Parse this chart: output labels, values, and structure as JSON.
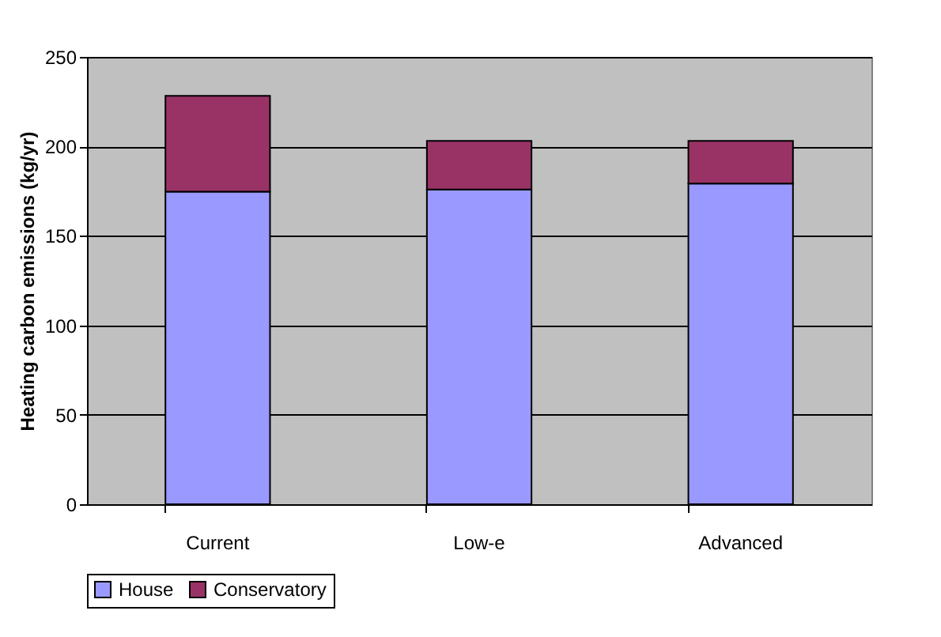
{
  "chart_data": {
    "type": "bar",
    "stacked": true,
    "ylabel": "Heating carbon emissions (kg/yr)",
    "categories": [
      "Current",
      "Low-e",
      "Advanced"
    ],
    "series": [
      {
        "name": "House",
        "color": "#9999ff",
        "values": [
          174.7,
          175.9,
          179.2
        ]
      },
      {
        "name": "Conservatory",
        "color": "#993366",
        "values": [
          53.5,
          27.2,
          23.9
        ]
      }
    ],
    "ylim": [
      0,
      250
    ],
    "yticks": [
      0,
      50,
      100,
      150,
      200,
      250
    ],
    "grid": "y",
    "legend": "bottom"
  }
}
